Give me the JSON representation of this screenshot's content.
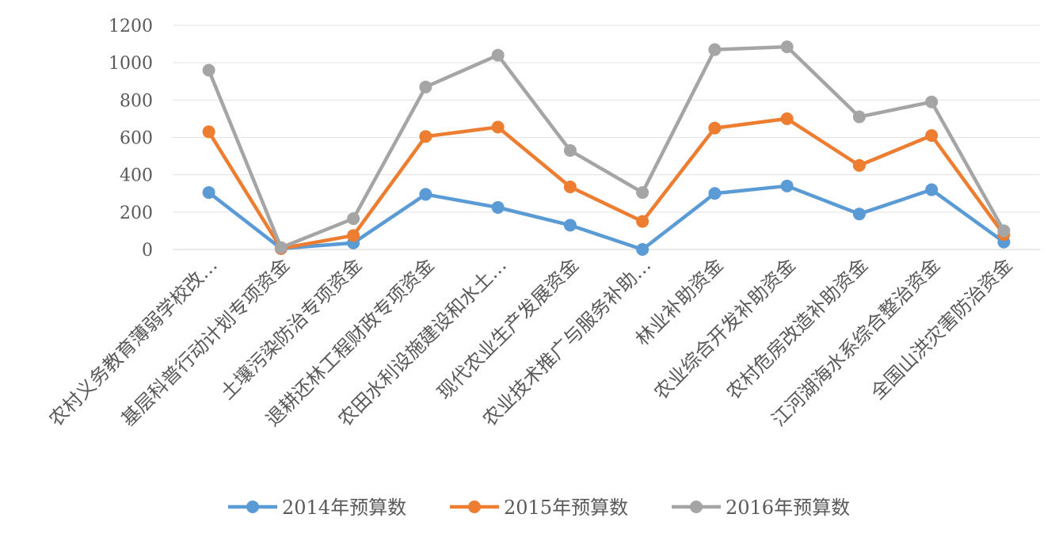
{
  "chart_data": {
    "type": "line",
    "title": "",
    "xlabel": "",
    "ylabel": "",
    "ylim": [
      0,
      1200
    ],
    "yticks": [
      0,
      200,
      400,
      600,
      800,
      1000,
      1200
    ],
    "ytick_labels": [
      "0",
      "200",
      "400",
      "600",
      "800",
      "1000",
      "1200"
    ],
    "grid": true,
    "legend_position": "bottom",
    "categories": [
      "农村义务教育薄弱学校改…",
      "基层科普行动计划专项资金",
      "土壤污染防治专项资金",
      "退耕还林工程财政专项资金",
      "农田水利设施建设和水土…",
      "现代农业生产发展资金",
      "农业技术推广与服务补助…",
      "林业补助资金",
      "农业综合开发补助资金",
      "农村危房改造补助资金",
      "江河湖海水系综合整治资金",
      "全国山洪灾害防治资金"
    ],
    "series": [
      {
        "name": "2014年预算数",
        "color": "#5B9BD5",
        "values": [
          305,
          5,
          35,
          295,
          225,
          130,
          0,
          300,
          340,
          190,
          320,
          40
        ]
      },
      {
        "name": "2015年预算数",
        "color": "#ED7D31",
        "values": [
          630,
          5,
          75,
          605,
          655,
          335,
          150,
          650,
          700,
          450,
          610,
          80
        ]
      },
      {
        "name": "2016年预算数",
        "color": "#A5A5A5",
        "values": [
          960,
          10,
          165,
          870,
          1040,
          530,
          305,
          1070,
          1085,
          710,
          790,
          100
        ]
      }
    ]
  }
}
